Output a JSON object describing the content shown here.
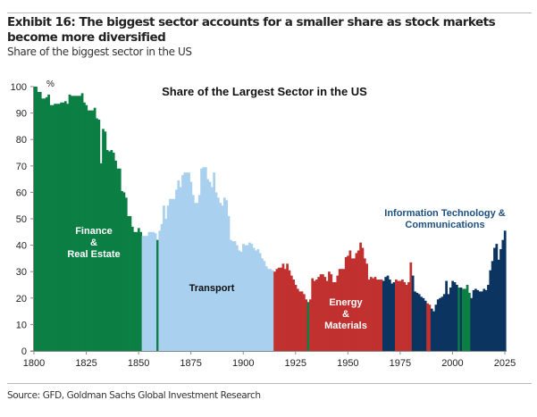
{
  "header": {
    "title": "Exhibit 16: The biggest sector accounts for a smaller share as stock markets become more diversified",
    "subtitle": "Share of the biggest sector in the US"
  },
  "footer": {
    "source": "Source: GFD, Goldman Sachs Global Investment Research"
  },
  "chart_data": {
    "type": "bar",
    "title": "Share of the Largest Sector in the US",
    "ylabel": "%",
    "xlabel": "",
    "ylim": [
      0,
      100
    ],
    "xlim": [
      1800,
      2025
    ],
    "yticks": [
      0,
      10,
      20,
      30,
      40,
      50,
      60,
      70,
      80,
      90,
      100
    ],
    "xticks": [
      1800,
      1825,
      1850,
      1875,
      1900,
      1925,
      1950,
      1975,
      2000,
      2025
    ],
    "grid": false,
    "start_year": 1800,
    "values": [
      100,
      100,
      98,
      98,
      95.5,
      95.5,
      96,
      97,
      93,
      93,
      93.5,
      93.5,
      93.5,
      94,
      94,
      94.5,
      93.5,
      97,
      96.5,
      96.5,
      96.5,
      96.5,
      96.5,
      97.5,
      94,
      93,
      91,
      91,
      91,
      92,
      88,
      87.5,
      71,
      84,
      83,
      76,
      75.5,
      76,
      75,
      72,
      69,
      69,
      60.5,
      60,
      58,
      51,
      51,
      47,
      45,
      45,
      46.5,
      45,
      43.5,
      43.5,
      43.5,
      45,
      45,
      45,
      44.5,
      42,
      45.5,
      48,
      55,
      50,
      55,
      57.5,
      57.5,
      57.5,
      61,
      64.5,
      62,
      66.5,
      67.5,
      67.5,
      67.5,
      64,
      59,
      56,
      56,
      59,
      69,
      69.5,
      69.5,
      65,
      64,
      62,
      67.5,
      60,
      58,
      56,
      55,
      58,
      57,
      51,
      42,
      41.5,
      41.5,
      40,
      38,
      37.5,
      40.5,
      40,
      40,
      41,
      40.5,
      39,
      38,
      38.5,
      37,
      35,
      34,
      32,
      31,
      31,
      30.5,
      30,
      31,
      31.5,
      31.5,
      33,
      31,
      33,
      30.5,
      28.5,
      27,
      25,
      23.5,
      22.5,
      22.5,
      21.5,
      19.5,
      18.5,
      19.5,
      27.5,
      26.5,
      27,
      28,
      29,
      29,
      28,
      26.5,
      30,
      29,
      26,
      26,
      28.5,
      31,
      31,
      31,
      35.5,
      36,
      38,
      35,
      35,
      37,
      38,
      41,
      39,
      35,
      33,
      27,
      28,
      27.5,
      28,
      27,
      27,
      27,
      26.5,
      28,
      28.5,
      27,
      25.5,
      26,
      27,
      26.5,
      26.5,
      27,
      26,
      25,
      26,
      33.5,
      28.5,
      22.5,
      22,
      21.5,
      20.5,
      20,
      19,
      18,
      17.5,
      16,
      15,
      17.5,
      19.5,
      20,
      20.5,
      21.5,
      26.5,
      21.5,
      24,
      26.5,
      26,
      25,
      24,
      24,
      23.5,
      23.5,
      25,
      22,
      20,
      23,
      23.5,
      23,
      22.5,
      22.5,
      23.5,
      23,
      25,
      30.5,
      34,
      39,
      40.5,
      34.5,
      38.5,
      42,
      45.5
    ],
    "sector_periods": [
      {
        "from": 1800,
        "to": 1851,
        "sector": "finance"
      },
      {
        "from": 1852,
        "to": 1858,
        "sector": "transport"
      },
      {
        "from": 1859,
        "to": 1859,
        "sector": "finance"
      },
      {
        "from": 1860,
        "to": 1914,
        "sector": "transport"
      },
      {
        "from": 1915,
        "to": 1930,
        "sector": "energy"
      },
      {
        "from": 1931,
        "to": 1931,
        "sector": "finance"
      },
      {
        "from": 1932,
        "to": 1966,
        "sector": "energy"
      },
      {
        "from": 1967,
        "to": 1972,
        "sector": "it"
      },
      {
        "from": 1973,
        "to": 1980,
        "sector": "energy"
      },
      {
        "from": 1981,
        "to": 1987,
        "sector": "it"
      },
      {
        "from": 1988,
        "to": 1989,
        "sector": "energy"
      },
      {
        "from": 1990,
        "to": 2002,
        "sector": "it"
      },
      {
        "from": 2003,
        "to": 2003,
        "sector": "finance"
      },
      {
        "from": 2004,
        "to": 2004,
        "sector": "it"
      },
      {
        "from": 2005,
        "to": 2008,
        "sector": "finance"
      },
      {
        "from": 2009,
        "to": 2025,
        "sector": "it"
      }
    ],
    "sectors": {
      "finance": {
        "label_lines": [
          "Finance",
          "&",
          "Real Estate"
        ],
        "color": "#0b7f44",
        "label_color": "#ffffff"
      },
      "transport": {
        "label_lines": [
          "Transport"
        ],
        "color": "#a9d0ef",
        "label_color": "#111111"
      },
      "energy": {
        "label_lines": [
          "Energy",
          "&",
          "Materials"
        ],
        "color": "#c0312f",
        "label_color": "#ffffff"
      },
      "it": {
        "label_lines": [
          "Information Technology &",
          "Communications"
        ],
        "color": "#0c3461",
        "label_color": "#1c4f82"
      }
    }
  }
}
